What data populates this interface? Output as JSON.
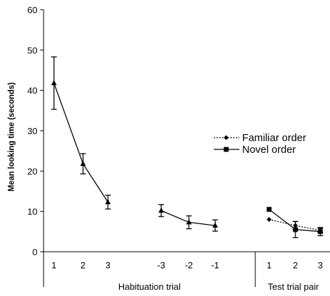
{
  "chart_data": {
    "type": "line",
    "ylabel": "Mean looking time (seconds)",
    "ylim": [
      0,
      60
    ],
    "yticks": [
      0,
      10,
      20,
      30,
      40,
      50,
      60
    ],
    "grid": false,
    "legend_position": "right",
    "groups": [
      {
        "label": "Habituation trial",
        "categories": [
          "1",
          "2",
          "3",
          "-3",
          "-2",
          "-1"
        ],
        "series": [
          {
            "marker": "triangle",
            "segments": [
              [
                0,
                1,
                2
              ],
              [
                3,
                4,
                5
              ]
            ],
            "values": [
              41.8,
              21.8,
              12.3,
              10.2,
              7.3,
              6.5
            ],
            "error": [
              6.5,
              2.5,
              1.7,
              1.5,
              1.6,
              1.4
            ]
          }
        ]
      },
      {
        "label": "Test trial pair",
        "categories": [
          "1",
          "2",
          "3"
        ],
        "series": [
          {
            "name": "Familiar order",
            "marker": "diamond",
            "line": "dotted",
            "values": [
              8.0,
              6.5,
              5.3
            ],
            "error": [
              0.0,
              1.0,
              0.5
            ]
          },
          {
            "name": "Novel order",
            "marker": "square",
            "line": "solid",
            "values": [
              10.5,
              5.5,
              5.0
            ],
            "error": [
              0.0,
              2.0,
              1.0
            ]
          }
        ]
      }
    ]
  }
}
